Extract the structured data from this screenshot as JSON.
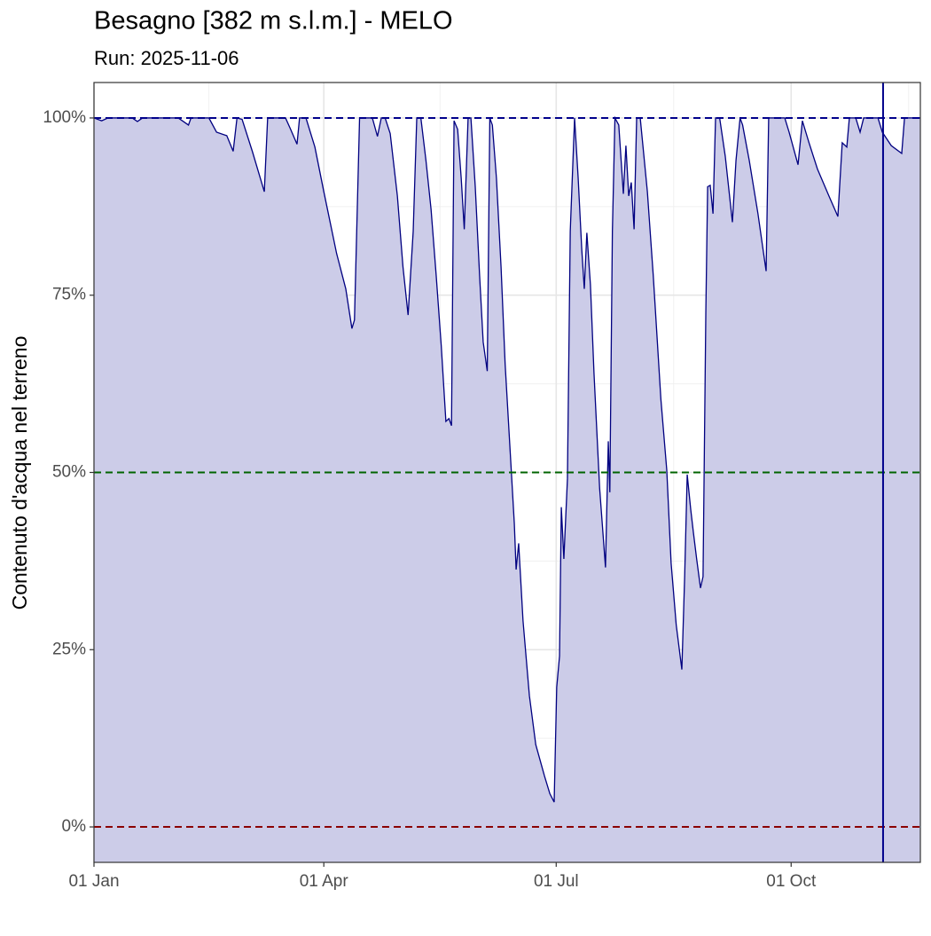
{
  "chart_data": {
    "type": "area",
    "title": "Besagno [382 m s.l.m.] - MELO",
    "subtitle": "Run: 2025-11-06",
    "ylabel": "Contenuto d'acqua nel terreno",
    "x": [
      0,
      3,
      5.5,
      15,
      17,
      19,
      33,
      37,
      38,
      45,
      48,
      52,
      54.5,
      56,
      58,
      62,
      66.7,
      68,
      75,
      77,
      79.5,
      80.5,
      83,
      86.5,
      90,
      95,
      98.6,
      101,
      102,
      104,
      109,
      111,
      112.5,
      114,
      116,
      118.8,
      121,
      123,
      125,
      126.4,
      128,
      130,
      132,
      134,
      136,
      137.8,
      139,
      140,
      141,
      142.4,
      143.8,
      145,
      146.5,
      147.6,
      149.3,
      151,
      152.4,
      154,
      155,
      156,
      157.6,
      159.4,
      161,
      163,
      164.6,
      165.3,
      166.3,
      168,
      170.5,
      173,
      176.4,
      178.5,
      180.2,
      181.2,
      182.3,
      183,
      184,
      185.4,
      186.5,
      188.2,
      189.6,
      191,
      192,
      193,
      194.4,
      195.8,
      198,
      200.3,
      201.4,
      202,
      203,
      204,
      205.5,
      207.3,
      208.3,
      209.4,
      210.4,
      211.5,
      212.5,
      213.9,
      216.7,
      219,
      222,
      224.3,
      226,
      228,
      230.2,
      231.3,
      232.3,
      233.7,
      234.7,
      236,
      237.5,
      238.5,
      239.6,
      240.3,
      241.3,
      242.4,
      243.4,
      245,
      247.2,
      250,
      251.4,
      253,
      254,
      256.6,
      260,
      263.2,
      264.2,
      270.5,
      272.2,
      275.7,
      277.4,
      280,
      283.3,
      287.8,
      291.3,
      293,
      294.8,
      295.8,
      298.3,
      300,
      301.4,
      307,
      308.7,
      312.2,
      316.3,
      317.4,
      323.6
    ],
    "series": [
      {
        "color": "#000080",
        "values": [
          100,
          99.6,
          100,
          100,
          99.5,
          100,
          100,
          99,
          100,
          100,
          98,
          97.5,
          95.3,
          100,
          99.8,
          95.3,
          89.6,
          100,
          100,
          98.4,
          96.3,
          100,
          100,
          95.9,
          89.6,
          80.9,
          75.9,
          70.3,
          71.5,
          100,
          100,
          97.4,
          100,
          100,
          97.8,
          89,
          79,
          72.2,
          84,
          100,
          100,
          94,
          87.1,
          77.8,
          67.8,
          57.2,
          57.6,
          56.6,
          99.6,
          98.4,
          91.5,
          84.3,
          100,
          100,
          90.3,
          77.8,
          68.4,
          64.3,
          100,
          99,
          91.5,
          79,
          65.3,
          52.8,
          42.8,
          36.3,
          40,
          29.1,
          18.5,
          11.6,
          7.2,
          4.7,
          3.5,
          19.7,
          24.1,
          45.1,
          37.8,
          49.1,
          84,
          100,
          91.5,
          81.5,
          75.9,
          83.8,
          76.5,
          64,
          47.8,
          36.6,
          54.4,
          47.2,
          84,
          100,
          99,
          89.3,
          96.1,
          89,
          90.9,
          84.3,
          100,
          100,
          89.6,
          77.8,
          60.3,
          50.3,
          37.2,
          28.5,
          22.2,
          35.3,
          49.7,
          44.7,
          41.6,
          37.8,
          33.7,
          35.3,
          72.8,
          90.3,
          90.5,
          86.5,
          100,
          100,
          94.6,
          85.3,
          94,
          100,
          99,
          94,
          86.5,
          78.4,
          100,
          100,
          98,
          93.4,
          99.6,
          96.5,
          92.8,
          89,
          86.1,
          96.5,
          95.9,
          100,
          100,
          98,
          100,
          100,
          98,
          96.1,
          95,
          100,
          100
        ]
      }
    ],
    "fill": "#cccce8",
    "xlim": [
      0,
      323.6
    ],
    "xticks": [
      {
        "value": 0,
        "label": "01 Jan"
      },
      {
        "value": 90,
        "label": "01 Apr"
      },
      {
        "value": 181,
        "label": "01 Jul"
      },
      {
        "value": 273,
        "label": "01 Oct"
      }
    ],
    "ylim": [
      -5,
      105
    ],
    "yticks": [
      {
        "value": 0,
        "label": "0%"
      },
      {
        "value": 25,
        "label": "25%"
      },
      {
        "value": 50,
        "label": "50%"
      },
      {
        "value": 75,
        "label": "75%"
      },
      {
        "value": 100,
        "label": "100%"
      }
    ],
    "grid": true,
    "hlines": [
      {
        "value": 100,
        "color": "#00008b"
      },
      {
        "value": 50,
        "color": "#006400"
      },
      {
        "value": 0,
        "color": "#8b0000"
      }
    ],
    "vlines": [
      {
        "value": 309,
        "color": "#00008b"
      }
    ]
  }
}
